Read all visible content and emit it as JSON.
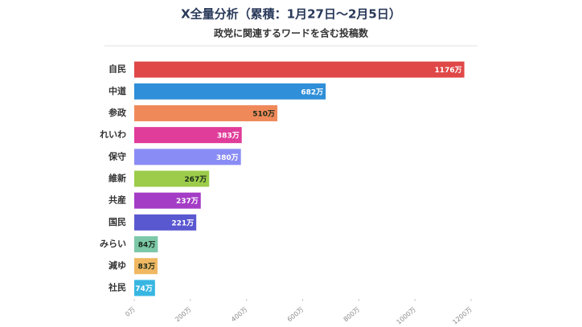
{
  "chart_data": {
    "type": "bar",
    "orientation": "horizontal",
    "title": "X全量分析（累積：1月27日〜2月5日）",
    "subtitle": "政党に関連するワードを含む投稿数",
    "categories": [
      "自民",
      "中道",
      "参政",
      "れいわ",
      "保守",
      "維新",
      "共産",
      "国民",
      "みらい",
      "減ゆ",
      "社民"
    ],
    "values": [
      1176,
      682,
      510,
      383,
      380,
      267,
      237,
      221,
      84,
      83,
      74
    ],
    "value_labels": [
      "1176万",
      "682万",
      "510万",
      "383万",
      "380万",
      "267万",
      "237万",
      "221万",
      "84万",
      "83万",
      "74万"
    ],
    "colors": [
      "#e04848",
      "#2f8fd8",
      "#f0895a",
      "#e03c9a",
      "#8a8cf5",
      "#9ccc4a",
      "#a43cc6",
      "#5a58d0",
      "#7cc8a8",
      "#f0b862",
      "#38b6e2"
    ],
    "xlim": [
      0,
      1200
    ],
    "xticks": [
      {
        "value": 0,
        "label": "0万"
      },
      {
        "value": 200,
        "label": "200万"
      },
      {
        "value": 400,
        "label": "400万"
      },
      {
        "value": 600,
        "label": "600万"
      },
      {
        "value": 800,
        "label": "800万"
      },
      {
        "value": 1000,
        "label": "1000万"
      },
      {
        "value": 1200,
        "label": "1200万"
      }
    ],
    "grid": false
  }
}
